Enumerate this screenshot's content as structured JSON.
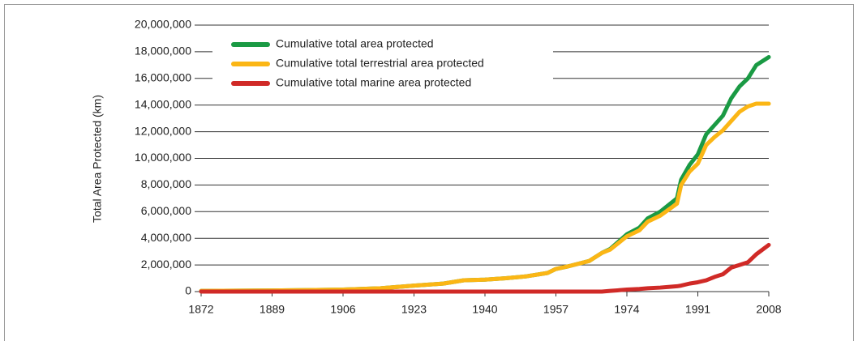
{
  "chart_data": {
    "type": "line",
    "y_label": "Total Area Protected (km)",
    "x": [
      1872,
      1889,
      1906,
      1915,
      1923,
      1930,
      1935,
      1940,
      1945,
      1950,
      1955,
      1957,
      1960,
      1965,
      1968,
      1970,
      1974,
      1977,
      1979,
      1982,
      1984,
      1986,
      1987,
      1989,
      1991,
      1993,
      1995,
      1997,
      1999,
      2001,
      2003,
      2005,
      2008
    ],
    "series": [
      {
        "name": "Cumulative total area protected",
        "color": "#1a9a44",
        "values": [
          50000,
          80000,
          150000,
          250000,
          450000,
          600000,
          850000,
          900000,
          1000000,
          1150000,
          1400000,
          1700000,
          1900000,
          2300000,
          2900000,
          3200000,
          4300000,
          4800000,
          5500000,
          6000000,
          6500000,
          7000000,
          8400000,
          9500000,
          10300000,
          11800000,
          12500000,
          13200000,
          14500000,
          15400000,
          16000000,
          17000000,
          17600000
        ]
      },
      {
        "name": "Cumulative total terrestrial area protected",
        "color": "#fbb615",
        "values": [
          50000,
          80000,
          150000,
          250000,
          450000,
          600000,
          850000,
          900000,
          1000000,
          1150000,
          1400000,
          1700000,
          1900000,
          2300000,
          2900000,
          3150000,
          4150000,
          4600000,
          5250000,
          5700000,
          6150000,
          6600000,
          8000000,
          9000000,
          9600000,
          11000000,
          11600000,
          12100000,
          12800000,
          13500000,
          13900000,
          14100000,
          14100000
        ]
      },
      {
        "name": "Cumulative total marine area protected",
        "color": "#d02a27",
        "values": [
          0,
          0,
          0,
          0,
          0,
          0,
          0,
          0,
          0,
          0,
          0,
          0,
          0,
          0,
          0,
          50000,
          150000,
          200000,
          250000,
          300000,
          350000,
          400000,
          450000,
          600000,
          700000,
          850000,
          1100000,
          1300000,
          1800000,
          2000000,
          2200000,
          2800000,
          3500000
        ]
      }
    ],
    "xlim": [
      1872,
      2008
    ],
    "xticks": [
      1872,
      1889,
      1906,
      1923,
      1940,
      1957,
      1974,
      1991,
      2008
    ],
    "ylim": [
      0,
      20000000
    ],
    "yticks": [
      0,
      {
        "value": 2000000,
        "label": "2,000,000"
      },
      {
        "value": 4000000,
        "label": "4,000,000"
      },
      {
        "value": 6000000,
        "label": "6,000,000"
      },
      {
        "value": 8000000,
        "label": "8,000,000"
      },
      {
        "value": 10000000,
        "label": "10,000,000"
      },
      {
        "value": 12000000,
        "label": "12,000,000"
      },
      {
        "value": 14000000,
        "label": "14,000,000"
      },
      {
        "value": 16000000,
        "label": "16,000,000"
      },
      {
        "value": 18000000,
        "label": "18,000,000"
      },
      {
        "value": 20000000,
        "label": "20,000,000"
      }
    ],
    "grid": true,
    "legend": "upper left"
  }
}
